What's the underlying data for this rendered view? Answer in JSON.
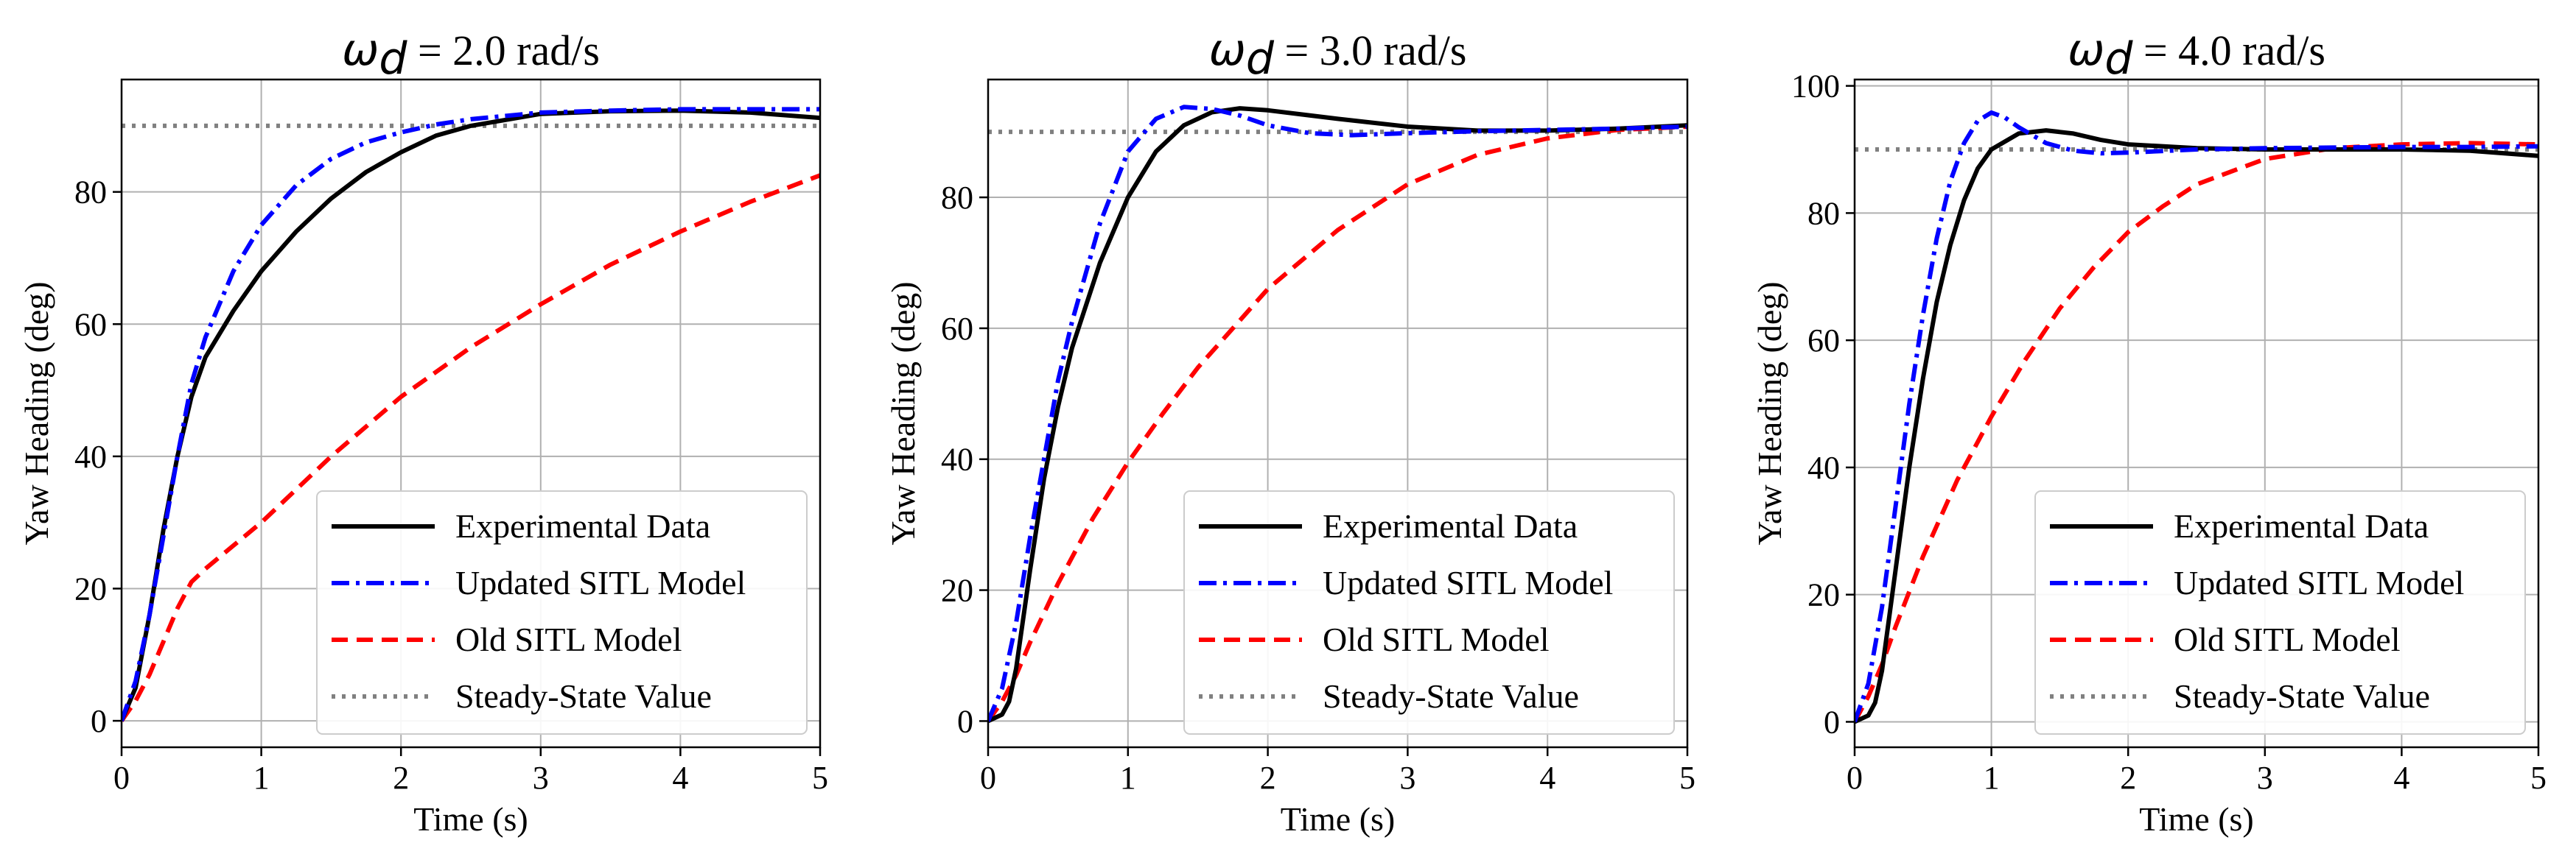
{
  "chart_data": [
    {
      "type": "line",
      "title_symbol": "ω",
      "title_subscript": "d",
      "title_rest": " = 2.0 rad/s",
      "xlabel": "Time (s)",
      "ylabel": "Yaw Heading (deg)",
      "xlim": [
        0,
        5
      ],
      "ylim": [
        -4,
        97
      ],
      "xticks": [
        "0",
        "1",
        "2",
        "3",
        "4",
        "5"
      ],
      "yticks": [
        "0",
        "20",
        "40",
        "60",
        "80"
      ],
      "grid": true,
      "legend_position": "lower right",
      "series": [
        {
          "name": "Experimental Data",
          "color": "#000000",
          "dash": "solid",
          "x": [
            0,
            0.1,
            0.2,
            0.3,
            0.4,
            0.5,
            0.6,
            0.8,
            1.0,
            1.25,
            1.5,
            1.75,
            2.0,
            2.25,
            2.5,
            3.0,
            3.5,
            4.0,
            4.5,
            5.0
          ],
          "y": [
            0,
            5,
            16,
            29,
            40,
            49,
            55,
            62,
            68,
            74,
            79,
            83,
            86,
            88.5,
            90,
            91.8,
            92.2,
            92.3,
            92,
            91.2
          ]
        },
        {
          "name": "Updated SITL Model",
          "color": "#0000ff",
          "dash": "dashdot",
          "x": [
            0,
            0.1,
            0.2,
            0.3,
            0.4,
            0.5,
            0.6,
            0.8,
            1.0,
            1.25,
            1.5,
            1.75,
            2.0,
            2.25,
            2.5,
            3.0,
            3.5,
            4.0,
            4.5,
            5.0
          ],
          "y": [
            0,
            6,
            16,
            28,
            40,
            51,
            58,
            68,
            75,
            81,
            85,
            87.5,
            89,
            90.2,
            91,
            92,
            92.3,
            92.5,
            92.5,
            92.5
          ]
        },
        {
          "name": "Old SITL Model",
          "color": "#ff0000",
          "dash": "dashed",
          "x": [
            0,
            0.1,
            0.2,
            0.3,
            0.4,
            0.5,
            0.6,
            0.8,
            1.0,
            1.25,
            1.5,
            1.75,
            2.0,
            2.5,
            3.0,
            3.5,
            4.0,
            4.5,
            5.0
          ],
          "y": [
            0,
            3,
            7,
            12,
            17,
            21,
            23,
            26.5,
            30,
            35,
            40,
            44.5,
            49,
            56.5,
            63,
            69,
            74,
            78.5,
            82.5
          ]
        },
        {
          "name": "Steady-State Value",
          "color": "#808080",
          "dash": "dotted",
          "x": [
            0,
            5
          ],
          "y": [
            90,
            90
          ]
        }
      ]
    },
    {
      "type": "line",
      "title_symbol": "ω",
      "title_subscript": "d",
      "title_rest": " = 3.0 rad/s",
      "xlabel": "Time (s)",
      "ylabel": "Yaw Heading (deg)",
      "xlim": [
        0,
        5
      ],
      "ylim": [
        -4,
        98
      ],
      "xticks": [
        "0",
        "1",
        "2",
        "3",
        "4",
        "5"
      ],
      "yticks": [
        "0",
        "20",
        "40",
        "60",
        "80"
      ],
      "grid": true,
      "legend_position": "lower right",
      "series": [
        {
          "name": "Experimental Data",
          "color": "#000000",
          "dash": "solid",
          "x": [
            0,
            0.1,
            0.15,
            0.2,
            0.3,
            0.4,
            0.5,
            0.6,
            0.8,
            1.0,
            1.2,
            1.4,
            1.6,
            1.8,
            2.0,
            2.5,
            3.0,
            3.5,
            4.0,
            4.5,
            5.0
          ],
          "y": [
            0,
            1,
            3,
            8,
            23,
            37,
            48,
            57,
            70,
            80,
            87,
            91,
            93,
            93.6,
            93.3,
            92,
            90.8,
            90.2,
            90.2,
            90.5,
            91
          ]
        },
        {
          "name": "Updated SITL Model",
          "color": "#0000ff",
          "dash": "dashdot",
          "x": [
            0,
            0.1,
            0.2,
            0.3,
            0.4,
            0.5,
            0.6,
            0.8,
            1.0,
            1.2,
            1.4,
            1.6,
            1.8,
            2.0,
            2.3,
            2.6,
            3.0,
            3.5,
            4.0,
            4.5,
            5.0
          ],
          "y": [
            0,
            5,
            15,
            28,
            40,
            52,
            61,
            76,
            87,
            92,
            93.8,
            93.5,
            92.5,
            91,
            89.8,
            89.5,
            89.8,
            90.1,
            90.3,
            90.5,
            90.8
          ]
        },
        {
          "name": "Old SITL Model",
          "color": "#ff0000",
          "dash": "dashed",
          "x": [
            0,
            0.1,
            0.2,
            0.3,
            0.5,
            0.75,
            1.0,
            1.25,
            1.5,
            1.75,
            2.0,
            2.5,
            3.0,
            3.5,
            4.0,
            4.5,
            5.0
          ],
          "y": [
            0,
            3,
            7,
            12,
            21,
            31,
            39.5,
            47,
            54,
            60,
            66,
            75,
            82,
            86.5,
            89,
            90.3,
            90.8
          ]
        },
        {
          "name": "Steady-State Value",
          "color": "#808080",
          "dash": "dotted",
          "x": [
            0,
            5
          ],
          "y": [
            90,
            90
          ]
        }
      ]
    },
    {
      "type": "line",
      "title_symbol": "ω",
      "title_subscript": "d",
      "title_rest": " = 4.0 rad/s",
      "xlabel": "Time (s)",
      "ylabel": "Yaw Heading (deg)",
      "xlim": [
        0,
        5
      ],
      "ylim": [
        -4,
        101
      ],
      "xticks": [
        "0",
        "1",
        "2",
        "3",
        "4",
        "5"
      ],
      "yticks": [
        "0",
        "20",
        "40",
        "60",
        "80",
        "100"
      ],
      "grid": true,
      "legend_position": "lower right",
      "series": [
        {
          "name": "Experimental Data",
          "color": "#000000",
          "dash": "solid",
          "x": [
            0,
            0.1,
            0.15,
            0.2,
            0.3,
            0.4,
            0.5,
            0.6,
            0.7,
            0.8,
            0.9,
            1.0,
            1.2,
            1.4,
            1.6,
            1.8,
            2.0,
            2.5,
            3.0,
            3.5,
            4.0,
            4.5,
            5.0
          ],
          "y": [
            0,
            1,
            3,
            8,
            24,
            40,
            54,
            66,
            75,
            82,
            87,
            90,
            92.5,
            93,
            92.5,
            91.5,
            90.8,
            90.2,
            90,
            90,
            90,
            89.8,
            89
          ]
        },
        {
          "name": "Updated SITL Model",
          "color": "#0000ff",
          "dash": "dashdot",
          "x": [
            0,
            0.1,
            0.2,
            0.3,
            0.4,
            0.5,
            0.6,
            0.7,
            0.8,
            0.9,
            1.0,
            1.1,
            1.2,
            1.4,
            1.6,
            1.8,
            2.0,
            2.5,
            3.0,
            3.5,
            4.0,
            4.5,
            5.0
          ],
          "y": [
            0,
            6,
            18,
            34,
            50,
            64,
            76,
            85,
            91,
            94.5,
            95.8,
            95,
            93.5,
            91,
            89.8,
            89.4,
            89.5,
            90,
            90.2,
            90.3,
            90.4,
            90.4,
            90.5
          ]
        },
        {
          "name": "Old SITL Model",
          "color": "#ff0000",
          "dash": "dashed",
          "x": [
            0,
            0.1,
            0.2,
            0.3,
            0.5,
            0.75,
            1.0,
            1.25,
            1.5,
            1.75,
            2.0,
            2.25,
            2.5,
            3.0,
            3.5,
            4.0,
            4.5,
            5.0
          ],
          "y": [
            0,
            4,
            9,
            15,
            26,
            38,
            48,
            57,
            65,
            71.5,
            77,
            81,
            84.5,
            88.5,
            90.2,
            90.8,
            91,
            90.8
          ]
        },
        {
          "name": "Steady-State Value",
          "color": "#808080",
          "dash": "dotted",
          "x": [
            0,
            5
          ],
          "y": [
            90,
            90
          ]
        }
      ]
    }
  ]
}
